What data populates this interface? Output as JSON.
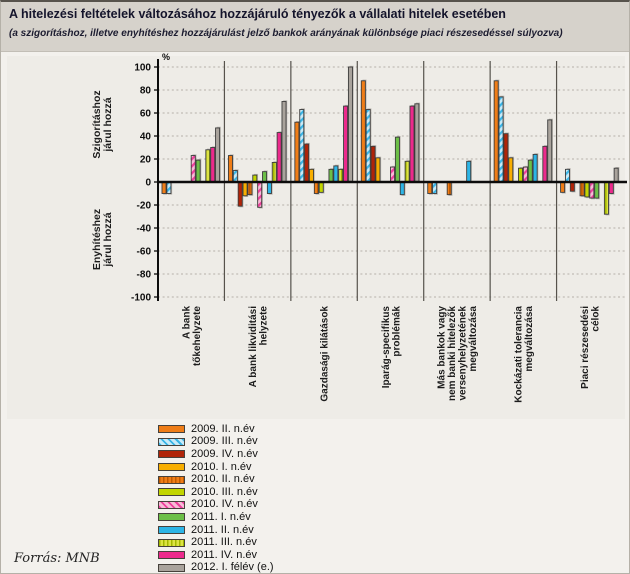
{
  "header": {
    "title": "A hitelezési feltételek változásához hozzájáruló tényezők a vállalati hitelek esetében",
    "subtitle": "(a szigorításhoz, illetve enyhítéshez hozzájárulást jelző bankok arányának különbsége piaci részesedéssel súlyozva)"
  },
  "footer": {
    "source": "Forrás: MNB"
  },
  "chart_data": {
    "type": "bar",
    "unit": "%",
    "ylim": [
      -100,
      100
    ],
    "ytick_step": 20,
    "grid": "dashed-horizontal",
    "legend_position": "bottom-left",
    "yaxis_annotations": {
      "positive": [
        "Szigorításhoz",
        "járul hozzá"
      ],
      "negative": [
        "Enyhítéshez",
        "járul hozzá"
      ]
    },
    "categories": [
      {
        "label": "A bank tőkehelyzete",
        "lines": [
          "A bank",
          "tőkehelyzete"
        ]
      },
      {
        "label": "A bank likviditási helyzete",
        "lines": [
          "A bank likviditási",
          "helyzete"
        ]
      },
      {
        "label": "Gazdasági kilátások",
        "lines": [
          "Gazdasági kilátások"
        ]
      },
      {
        "label": "Iparág-specifikus problémák",
        "lines": [
          "Iparág-specifikus",
          "problémák"
        ]
      },
      {
        "label": "Más bankok vagy nem banki hitelezők versenyhelyzetének megváltozása",
        "lines": [
          "Más bankok vagy",
          "nem banki hitelezők",
          "versenyhelyzetének",
          "megváltozása"
        ]
      },
      {
        "label": "Kockázati tolerancia megváltozása",
        "lines": [
          "Kockázati tolerancia",
          "megváltozása"
        ]
      },
      {
        "label": "Piaci részesedési célok",
        "lines": [
          "Piaci részesedési",
          "célok"
        ]
      }
    ],
    "series": [
      {
        "name": "2009. II. n.év",
        "pattern": "solid",
        "color": "#ef7d17",
        "stripe": "",
        "values": [
          -10,
          23,
          52,
          88,
          -10,
          88,
          -9
        ]
      },
      {
        "name": "2009. III. n.év",
        "pattern": "diagonal",
        "color": "#c9eaf7",
        "stripe": "#3ab5e6",
        "values": [
          -10,
          10,
          63,
          63,
          -10,
          74,
          11
        ]
      },
      {
        "name": "2009. IV. n.év",
        "pattern": "solid",
        "color": "#b02408",
        "stripe": "",
        "values": [
          0,
          -21,
          33,
          31,
          0,
          42,
          -8
        ]
      },
      {
        "name": "2010. I. n.év",
        "pattern": "solid",
        "color": "#f8ae00",
        "stripe": "",
        "values": [
          0,
          -12,
          11,
          21,
          0,
          21,
          0
        ]
      },
      {
        "name": "2010. II. n.év",
        "pattern": "vertical",
        "color": "#ef7d17",
        "stripe": "#c25a00",
        "values": [
          0,
          -11,
          -10,
          0,
          -11,
          0,
          -12
        ]
      },
      {
        "name": "2010. III. n.év",
        "pattern": "solid",
        "color": "#c2d500",
        "stripe": "",
        "values": [
          0,
          6,
          -9,
          0,
          0,
          12,
          -13
        ]
      },
      {
        "name": "2010. IV. n.év",
        "pattern": "diagonal",
        "color": "#f7bcd6",
        "stripe": "#ee3f9d",
        "values": [
          23,
          -22,
          0,
          13,
          0,
          13,
          -14
        ]
      },
      {
        "name": "2011. I. n.év",
        "pattern": "solid",
        "color": "#6cbf47",
        "stripe": "",
        "values": [
          19,
          9,
          11,
          39,
          0,
          19,
          -14
        ]
      },
      {
        "name": "2011. II. n.év",
        "pattern": "solid",
        "color": "#2db5e6",
        "stripe": "",
        "values": [
          0,
          -10,
          14,
          -11,
          18,
          24,
          0
        ]
      },
      {
        "name": "2011. III. n.év",
        "pattern": "vertical",
        "color": "#dde344",
        "stripe": "#a3b800",
        "values": [
          28,
          17,
          11,
          18,
          0,
          0,
          -28
        ]
      },
      {
        "name": "2011. IV. n.év",
        "pattern": "solid",
        "color": "#ec2a8c",
        "stripe": "",
        "values": [
          30,
          43,
          66,
          66,
          0,
          31,
          -10
        ]
      },
      {
        "name": "2012. I. félév (e.)",
        "pattern": "solid",
        "color": "#a9a39c",
        "stripe": "",
        "values": [
          47,
          70,
          100,
          68,
          0,
          54,
          12
        ]
      }
    ]
  }
}
